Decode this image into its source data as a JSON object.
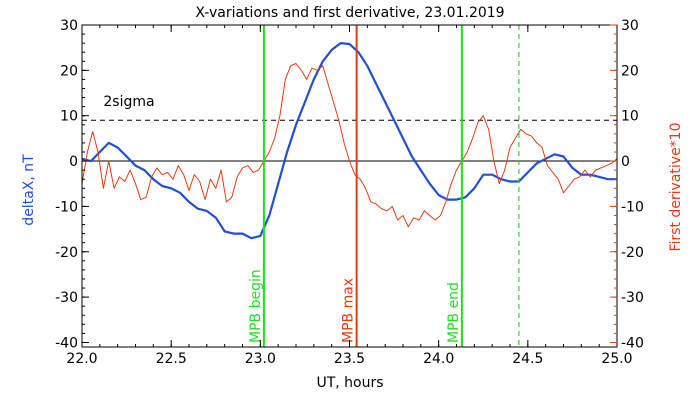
{
  "chart_data": {
    "type": "line",
    "title": "X-variations and first derivative, 23.01.2019",
    "xlabel": "UT, hours",
    "ylabel_left": "deltaX, nT",
    "ylabel_right": "First derivative*10",
    "xlim": [
      22.0,
      25.0
    ],
    "ylim": [
      -41,
      30
    ],
    "x_ticks": [
      "22.0",
      "22.5",
      "23.0",
      "23.5",
      "24.0",
      "24.5",
      "25.0"
    ],
    "y_ticks": [
      "30",
      "20",
      "10",
      "0",
      "-10",
      "-20",
      "-30",
      "-40"
    ],
    "grid": false,
    "colors": {
      "deltaX": "#1f4fd6",
      "derivative": "#e03c14",
      "mpb": "#22dd22",
      "max": "#e03c14",
      "axis": "#000000"
    },
    "reference_lines": [
      {
        "y": 9,
        "style": "dashed",
        "label": "2sigma"
      },
      {
        "y": 0,
        "style": "solid",
        "label": ""
      }
    ],
    "markers": [
      {
        "x": 23.02,
        "label": "MPB begin",
        "color": "#22dd22",
        "style": "solid"
      },
      {
        "x": 23.54,
        "label": "MPB max",
        "color": "#e03c14",
        "style": "solid"
      },
      {
        "x": 24.13,
        "label": "MPB end",
        "color": "#22dd22",
        "style": "solid"
      },
      {
        "x": 24.45,
        "label": "",
        "color": "#22dd22",
        "style": "dashed"
      }
    ],
    "series": [
      {
        "name": "deltaX, nT",
        "color": "#1f4fd6",
        "x": [
          22.0,
          22.05,
          22.1,
          22.15,
          22.2,
          22.25,
          22.3,
          22.35,
          22.4,
          22.45,
          22.5,
          22.55,
          22.6,
          22.65,
          22.7,
          22.75,
          22.8,
          22.85,
          22.9,
          22.95,
          23.0,
          23.05,
          23.1,
          23.15,
          23.2,
          23.25,
          23.3,
          23.35,
          23.4,
          23.45,
          23.5,
          23.55,
          23.6,
          23.65,
          23.7,
          23.75,
          23.8,
          23.85,
          23.9,
          23.95,
          24.0,
          24.05,
          24.1,
          24.15,
          24.2,
          24.25,
          24.3,
          24.35,
          24.4,
          24.45,
          24.5,
          24.55,
          24.6,
          24.65,
          24.7,
          24.75,
          24.8,
          24.85,
          24.9,
          24.95,
          25.0
        ],
        "values": [
          0.5,
          0.0,
          2.0,
          4.0,
          3.0,
          1.0,
          -1.0,
          -2.0,
          -4.0,
          -5.5,
          -6.0,
          -7.0,
          -9.0,
          -10.5,
          -11.0,
          -12.5,
          -15.5,
          -16.0,
          -16.0,
          -17.0,
          -16.5,
          -12.0,
          -5.0,
          2.0,
          8.0,
          13.0,
          18.0,
          22.0,
          24.5,
          26.0,
          25.8,
          24.0,
          21.0,
          17.0,
          13.0,
          9.0,
          5.0,
          1.0,
          -2.0,
          -5.0,
          -7.5,
          -8.5,
          -8.5,
          -8.0,
          -6.0,
          -3.0,
          -3.0,
          -4.0,
          -4.5,
          -4.5,
          -2.5,
          -0.5,
          0.5,
          1.5,
          1.0,
          -1.5,
          -3.0,
          -3.0,
          -3.5,
          -4.0,
          -4.0
        ]
      },
      {
        "name": "First derivative*10",
        "color": "#e03c14",
        "x": [
          22.0,
          22.03,
          22.06,
          22.09,
          22.12,
          22.15,
          22.18,
          22.21,
          22.24,
          22.27,
          22.3,
          22.33,
          22.36,
          22.39,
          22.42,
          22.45,
          22.48,
          22.51,
          22.54,
          22.57,
          22.6,
          22.63,
          22.66,
          22.69,
          22.72,
          22.75,
          22.78,
          22.81,
          22.84,
          22.87,
          22.9,
          22.93,
          22.96,
          22.99,
          23.02,
          23.05,
          23.08,
          23.11,
          23.14,
          23.17,
          23.2,
          23.23,
          23.26,
          23.29,
          23.32,
          23.35,
          23.38,
          23.41,
          23.44,
          23.47,
          23.5,
          23.53,
          23.56,
          23.59,
          23.62,
          23.65,
          23.68,
          23.71,
          23.74,
          23.77,
          23.8,
          23.83,
          23.86,
          23.89,
          23.92,
          23.95,
          23.98,
          24.01,
          24.04,
          24.07,
          24.1,
          24.13,
          24.16,
          24.19,
          24.22,
          24.25,
          24.28,
          24.31,
          24.34,
          24.37,
          24.4,
          24.43,
          24.46,
          24.49,
          24.52,
          24.55,
          24.58,
          24.61,
          24.64,
          24.67,
          24.7,
          24.73,
          24.76,
          24.79,
          24.82,
          24.85,
          24.88,
          24.91,
          24.94,
          24.97,
          25.0
        ],
        "values": [
          -5.0,
          2.0,
          6.5,
          2.0,
          -6.0,
          0.0,
          -6.0,
          -3.5,
          -4.5,
          -2.0,
          -5.0,
          -8.5,
          -8.0,
          -3.5,
          -1.5,
          -3.0,
          -2.5,
          -4.0,
          -1.0,
          -3.0,
          -6.5,
          -3.0,
          -4.5,
          -8.5,
          -4.0,
          -6.0,
          -2.0,
          -9.0,
          -8.0,
          -3.5,
          -1.5,
          -1.0,
          -2.5,
          -2.0,
          0.0,
          2.0,
          5.0,
          10.0,
          18.0,
          21.0,
          21.5,
          20.0,
          18.0,
          20.5,
          20.0,
          21.0,
          17.0,
          13.0,
          9.0,
          4.0,
          0.0,
          -3.0,
          -4.0,
          -6.0,
          -9.0,
          -9.5,
          -10.5,
          -11.0,
          -10.0,
          -13.0,
          -12.0,
          -14.5,
          -12.5,
          -13.0,
          -11.0,
          -12.0,
          -13.0,
          -12.0,
          -9.0,
          -5.0,
          -2.0,
          0.0,
          2.0,
          5.0,
          8.5,
          10.0,
          7.0,
          0.0,
          -5.0,
          -2.0,
          3.0,
          5.0,
          7.0,
          6.0,
          5.5,
          4.0,
          3.0,
          -1.0,
          -2.5,
          -4.0,
          -7.0,
          -5.5,
          -4.0,
          -3.5,
          -2.0,
          -3.5,
          -2.0,
          -1.5,
          -1.0,
          -0.5,
          0.5
        ]
      }
    ]
  }
}
